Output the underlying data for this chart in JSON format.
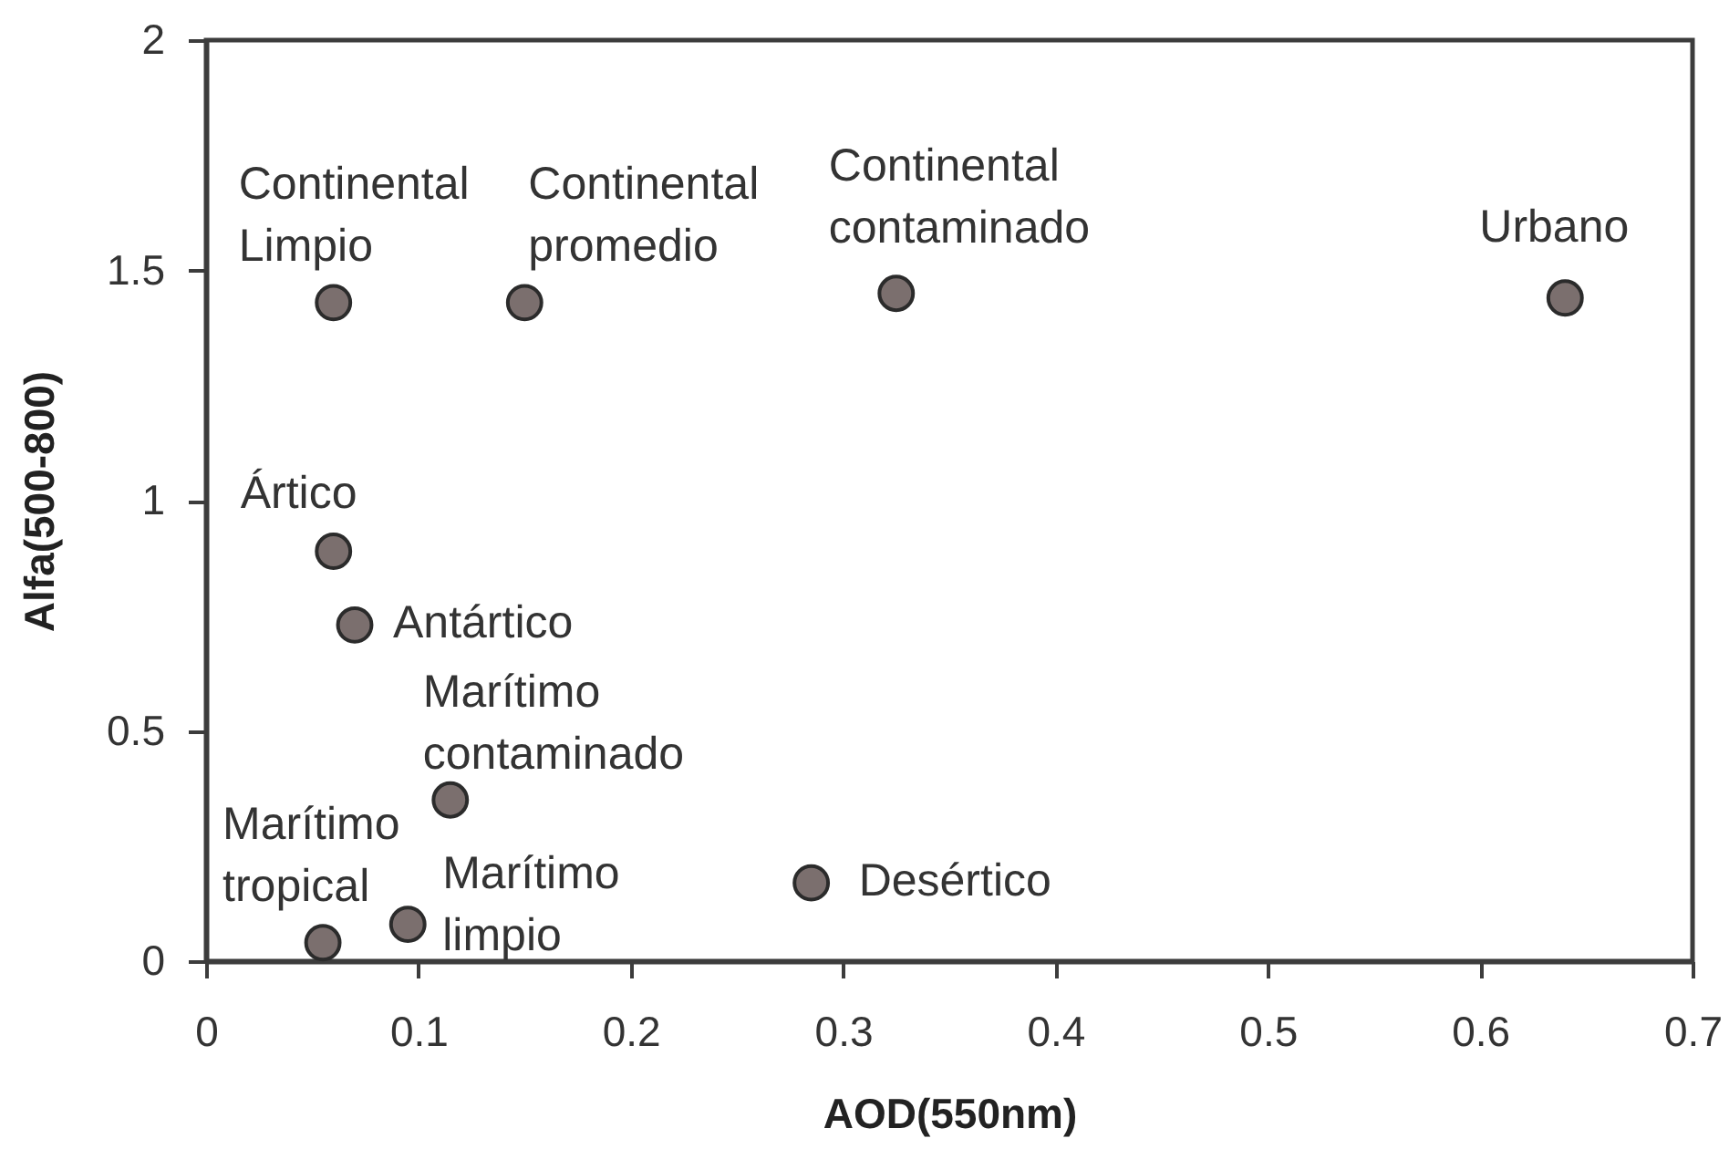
{
  "chart_data": {
    "type": "scatter",
    "xlabel": "AOD(550nm)",
    "ylabel": "Alfa(500-800)",
    "xlim": [
      0,
      0.7
    ],
    "xticks": [
      0,
      0.1,
      0.2,
      0.3,
      0.4,
      0.5,
      0.6,
      0.7
    ],
    "ylim": [
      0,
      2
    ],
    "yticks": [
      0,
      0.5,
      1,
      1.5,
      2
    ],
    "marker": "circle",
    "series": [
      {
        "color": "#7b6f6e",
        "x": [
          0.06,
          0.15,
          0.325,
          0.64,
          0.06,
          0.07,
          0.115,
          0.055,
          0.095,
          0.285
        ],
        "values": [
          1.43,
          1.43,
          1.45,
          1.44,
          0.89,
          0.73,
          0.35,
          0.04,
          0.08,
          0.17
        ]
      }
    ],
    "annotations": [
      {
        "text": "Continental Limpio",
        "x": 0.06,
        "y": 1.43
      },
      {
        "text": "Continental promedio",
        "x": 0.15,
        "y": 1.43
      },
      {
        "text": "Continental contaminado",
        "x": 0.325,
        "y": 1.45
      },
      {
        "text": "Urbano",
        "x": 0.64,
        "y": 1.44
      },
      {
        "text": "Ártico",
        "x": 0.06,
        "y": 0.89
      },
      {
        "text": "Antártico",
        "x": 0.07,
        "y": 0.73
      },
      {
        "text": "Marítimo contaminado",
        "x": 0.115,
        "y": 0.35
      },
      {
        "text": "Marítimo tropical",
        "x": 0.055,
        "y": 0.04
      },
      {
        "text": "Marítimo limpio",
        "x": 0.095,
        "y": 0.08
      },
      {
        "text": "Desértico",
        "x": 0.285,
        "y": 0.17
      }
    ]
  }
}
